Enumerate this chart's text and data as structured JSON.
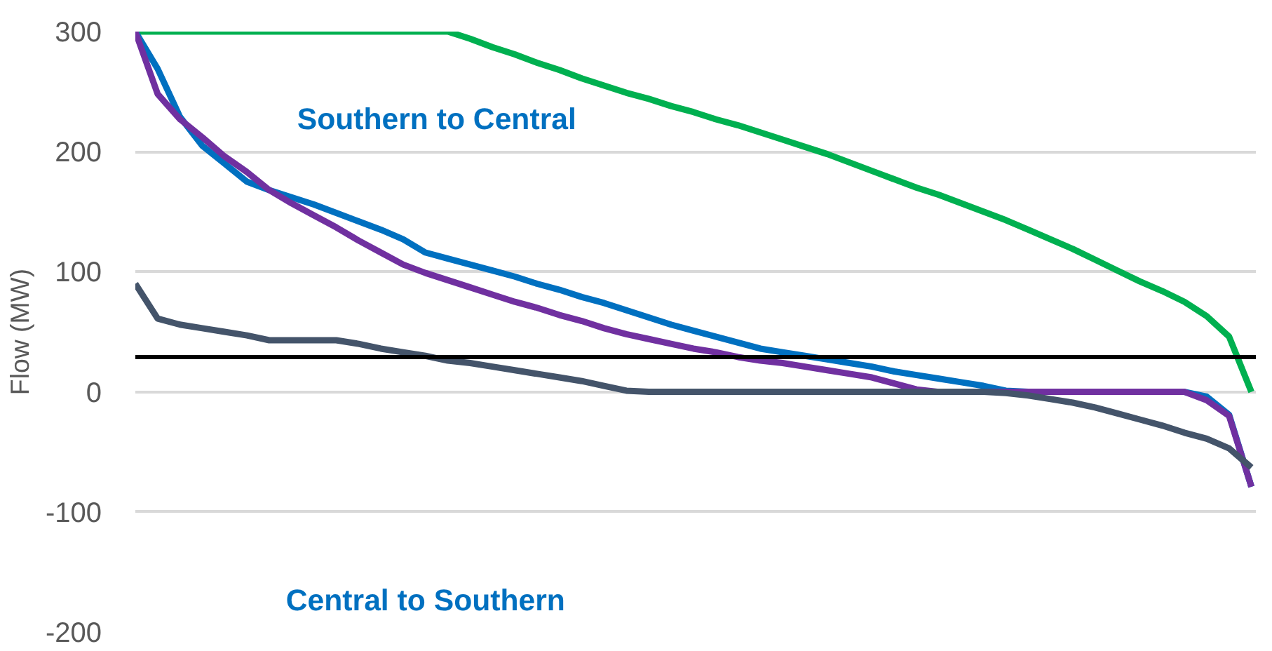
{
  "chart_data": {
    "type": "line",
    "ylabel": "Flow (MW)",
    "annotations": [
      "Southern to Central",
      "Central to Southern"
    ],
    "categories": [
      null,
      null,
      null,
      null,
      null,
      null,
      null,
      null,
      null,
      null,
      null,
      null,
      null,
      null,
      null,
      null,
      null,
      null,
      null,
      null,
      null,
      null,
      null,
      null,
      null,
      null,
      null,
      null,
      null,
      null,
      null,
      null,
      null,
      null,
      null,
      null,
      null,
      null,
      null,
      null,
      null,
      null,
      null,
      null,
      null,
      null,
      null,
      null,
      null,
      null,
      null
    ],
    "ylim": [
      -200,
      300
    ],
    "yticks": [
      -200,
      -100,
      0,
      100,
      200,
      300
    ],
    "tick_labels": "y",
    "grid": "y",
    "ref_lines": [
      {
        "axis": "y",
        "value": 29,
        "color": "#000000"
      }
    ],
    "series": [
      {
        "color": "#00b050",
        "values": [
          300,
          300,
          300,
          300,
          300,
          300,
          300,
          300,
          300,
          300,
          300,
          300,
          300,
          300,
          300,
          294,
          287,
          281,
          274,
          268,
          261,
          255,
          249,
          244,
          238,
          233,
          227,
          222,
          216,
          210,
          204,
          198,
          191,
          184,
          177,
          170,
          164,
          157,
          150,
          143,
          135,
          127,
          119,
          110,
          101,
          92,
          84,
          75,
          63,
          46,
          0
        ]
      },
      {
        "color": "#0070c0",
        "values": [
          300,
          269,
          229,
          205,
          190,
          175,
          168,
          162,
          156,
          149,
          142,
          135,
          127,
          116,
          111,
          106,
          101,
          96,
          90,
          85,
          79,
          74,
          68,
          62,
          56,
          51,
          46,
          41,
          36,
          33,
          30,
          27,
          24,
          21,
          17,
          14,
          11,
          8,
          5,
          1,
          0,
          0,
          0,
          0,
          0,
          0,
          0,
          0,
          -4,
          -19,
          -79
        ]
      },
      {
        "color": "#7030a0",
        "values": [
          300,
          248,
          227,
          212,
          196,
          183,
          168,
          157,
          147,
          137,
          126,
          116,
          106,
          99,
          93,
          87,
          81,
          75,
          70,
          64,
          59,
          53,
          48,
          44,
          40,
          36,
          33,
          29,
          26,
          24,
          21,
          18,
          15,
          12,
          7,
          2,
          0,
          0,
          0,
          0,
          0,
          0,
          0,
          0,
          0,
          0,
          0,
          0,
          -7,
          -20,
          -79
        ]
      },
      {
        "color": "#44546a",
        "values": [
          90,
          61,
          56,
          53,
          50,
          47,
          43,
          43,
          43,
          43,
          40,
          36,
          33,
          30,
          26,
          24,
          21,
          18,
          15,
          12,
          9,
          5,
          1,
          0,
          0,
          0,
          0,
          0,
          0,
          0,
          0,
          0,
          0,
          0,
          0,
          0,
          0,
          0,
          0,
          -1,
          -3,
          -6,
          -9,
          -13,
          -18,
          -23,
          -28,
          -34,
          -39,
          -47,
          -63
        ]
      }
    ]
  }
}
